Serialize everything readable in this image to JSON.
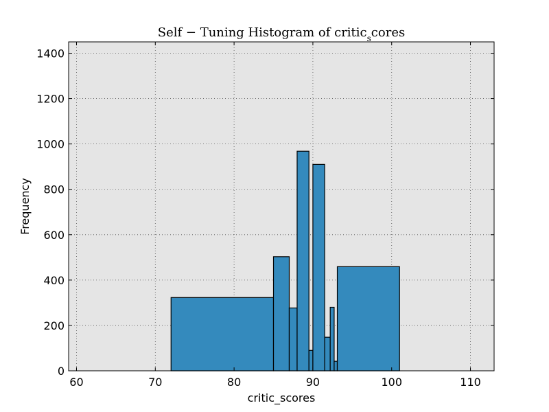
{
  "chart_data": {
    "type": "bar",
    "title": "Self − Tuning Histogram of critic_scores",
    "title_parts": {
      "prefix": "Self − Tuning Histogram of critic",
      "subscript": "s",
      "suffix": "cores"
    },
    "xlabel": "critic_scores",
    "ylabel": "Frequency",
    "xlim": [
      59,
      113
    ],
    "ylim": [
      0,
      1450
    ],
    "xticks": [
      60,
      70,
      80,
      90,
      100,
      110
    ],
    "yticks": [
      0,
      200,
      400,
      600,
      800,
      1000,
      1200,
      1400
    ],
    "grid": true,
    "background": "#e5e5e5",
    "bar_color": "#348abd",
    "edge_color": "#000000",
    "bins": [
      {
        "x0": 72.0,
        "x1": 85.0,
        "value": 323
      },
      {
        "x0": 85.0,
        "x1": 87.0,
        "value": 503
      },
      {
        "x0": 87.0,
        "x1": 88.0,
        "value": 277
      },
      {
        "x0": 88.0,
        "x1": 89.5,
        "value": 968
      },
      {
        "x0": 89.5,
        "x1": 90.0,
        "value": 90
      },
      {
        "x0": 90.0,
        "x1": 91.5,
        "value": 910
      },
      {
        "x0": 91.5,
        "x1": 92.2,
        "value": 148
      },
      {
        "x0": 92.2,
        "x1": 92.7,
        "value": 280
      },
      {
        "x0": 92.7,
        "x1": 93.1,
        "value": 42
      },
      {
        "x0": 93.1,
        "x1": 101.0,
        "value": 459
      }
    ]
  }
}
